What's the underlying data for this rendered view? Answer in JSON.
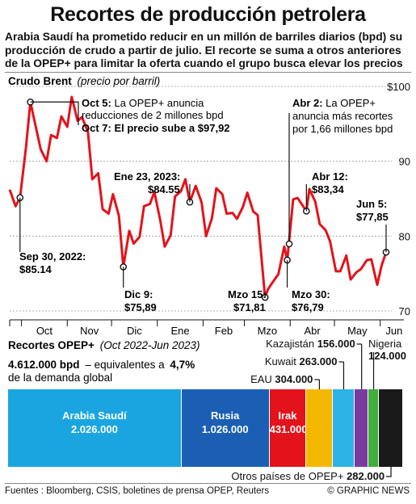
{
  "title": "Recortes de producción petrolera",
  "subtitle": "Arabia Saudí ha prometido reducir en un millón de barriles diarios (bpd) su producción de crudo a partir de julio. El recorte se suma a otros anteriores de la OPEP+ para limitar la oferta cuando el grupo busca elevar los precios",
  "chart_data": [
    {
      "type": "line",
      "title": "Crudo Brent",
      "subtitle": "(precio por barril)",
      "ylim": [
        70,
        100
      ],
      "y_ticks": [
        "$100",
        "90",
        "80",
        "70"
      ],
      "x_ticks": [
        "Oct",
        "Nov",
        "Dic",
        "Ene",
        "Feb",
        "Mzo",
        "Abr",
        "May",
        "Jun"
      ],
      "series": [
        {
          "color": "#e3131b",
          "x": [
            "2022-09-23",
            "2022-09-27",
            "2022-09-30",
            "2022-10-04",
            "2022-10-07",
            "2022-10-11",
            "2022-10-14",
            "2022-10-18",
            "2022-10-21",
            "2022-10-25",
            "2022-10-28",
            "2022-11-01",
            "2022-11-04",
            "2022-11-08",
            "2022-11-11",
            "2022-11-15",
            "2022-11-18",
            "2022-11-22",
            "2022-11-25",
            "2022-11-29",
            "2022-12-02",
            "2022-12-06",
            "2022-12-09",
            "2022-12-13",
            "2022-12-16",
            "2022-12-20",
            "2022-12-23",
            "2022-12-27",
            "2022-12-30",
            "2023-01-03",
            "2023-01-06",
            "2023-01-10",
            "2023-01-13",
            "2023-01-17",
            "2023-01-20",
            "2023-01-23",
            "2023-01-27",
            "2023-01-31",
            "2023-02-03",
            "2023-02-07",
            "2023-02-10",
            "2023-02-14",
            "2023-02-17",
            "2023-02-21",
            "2023-02-24",
            "2023-02-28",
            "2023-03-03",
            "2023-03-07",
            "2023-03-10",
            "2023-03-15",
            "2023-03-17",
            "2023-03-20",
            "2023-03-24",
            "2023-03-28",
            "2023-03-30",
            "2023-04-03",
            "2023-04-06",
            "2023-04-12",
            "2023-04-14",
            "2023-04-18",
            "2023-04-21",
            "2023-04-25",
            "2023-04-28",
            "2023-05-02",
            "2023-05-05",
            "2023-05-09",
            "2023-05-12",
            "2023-05-16",
            "2023-05-19",
            "2023-05-23",
            "2023-05-26",
            "2023-05-30",
            "2023-06-02",
            "2023-06-05"
          ],
          "y": [
            86.2,
            84.0,
            85.14,
            91.8,
            97.92,
            94.3,
            91.6,
            90.0,
            93.5,
            93.1,
            96.0,
            94.6,
            98.6,
            95.4,
            95.9,
            93.9,
            87.6,
            88.4,
            83.6,
            83.0,
            85.6,
            82.7,
            75.89,
            80.7,
            79.0,
            79.9,
            84.0,
            84.3,
            85.9,
            82.1,
            78.6,
            80.1,
            85.3,
            86.0,
            87.6,
            84.55,
            86.7,
            84.5,
            80.0,
            82.4,
            86.4,
            85.6,
            83.0,
            83.1,
            82.3,
            83.9,
            85.8,
            83.3,
            82.8,
            71.81,
            72.9,
            73.8,
            74.9,
            78.6,
            76.79,
            84.9,
            85.1,
            83.34,
            86.3,
            84.6,
            81.6,
            80.8,
            79.3,
            75.3,
            75.3,
            77.4,
            74.2,
            75.2,
            75.6,
            76.8,
            76.9,
            73.5,
            76.1,
            77.85
          ]
        }
      ],
      "annotations": [
        {
          "date_label": "Sep 30, 2022:",
          "value_label": "$85.14"
        },
        {
          "date_label": "Oct 5:",
          "text": "La OPEP+ anuncia reducciones de 2 millones bpd"
        },
        {
          "date_label": "Oct 7:",
          "text": "El precio sube a $97,92"
        },
        {
          "date_label": "Dic 9:",
          "value_label": "$75,89"
        },
        {
          "date_label": "Ene 23, 2023:",
          "value_label": "$84.55"
        },
        {
          "date_label": "Mzo 15:",
          "value_label": "$71,81"
        },
        {
          "date_label": "Mzo 30:",
          "value_label": "$76,79"
        },
        {
          "date_label": "Abr 2:",
          "text": "La OPEP+ anuncia más recortes por 1,66 millones bpd"
        },
        {
          "date_label": "Abr 12:",
          "value_label": "$83,34"
        },
        {
          "date_label": "Jun 5:",
          "value_label": "$77,85"
        }
      ]
    },
    {
      "type": "bar",
      "orientation": "stacked-horizontal",
      "title": "Recortes OPEP+",
      "subtitle": "(Oct 2022-Jun 2023)",
      "total_label": "4.612.000 bpd",
      "total_text": "– equivalentes a",
      "total_pct": "4,7%",
      "total_suffix": "de la demanda global",
      "categories": [
        "Arabia Saudí",
        "Rusia",
        "Irak",
        "EAU",
        "Kuwait",
        "Kazajistán",
        "Nigeria",
        "Otros países de OPEP+"
      ],
      "values": [
        2026000,
        1026000,
        431000,
        304000,
        263000,
        156000,
        124000,
        282000
      ],
      "value_labels": [
        "2.026.000",
        "1.026.000",
        "431.000",
        "304.000",
        "263.000",
        "156.000",
        "124.000",
        "282.000"
      ],
      "colors": [
        "#1ba5e0",
        "#1a5fb4",
        "#e3131b",
        "#f5b800",
        "#2db3e6",
        "#7b3aa0",
        "#3fae3a",
        "#1a1a1a"
      ]
    }
  ],
  "footer": {
    "sources": "Fuentes : Bloomberg, CSIS, boletines de prensa OPEP, Reuters",
    "credit": "© GRAPHIC NEWS"
  }
}
